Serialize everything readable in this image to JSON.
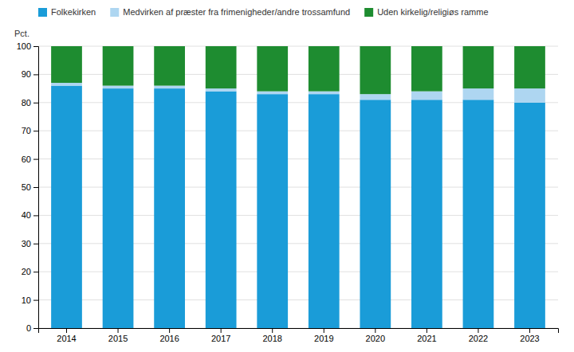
{
  "chart_data": {
    "type": "bar",
    "stacked": true,
    "ylabel": "Pct.",
    "categories": [
      "2014",
      "2015",
      "2016",
      "2017",
      "2018",
      "2019",
      "2020",
      "2021",
      "2022",
      "2023"
    ],
    "series": [
      {
        "name": "Folkekirken",
        "color": "#1a9cd8",
        "values": [
          86,
          85,
          85,
          84,
          83,
          83,
          81,
          81,
          81,
          80
        ]
      },
      {
        "name": "Medvirken af præster fra frimenigheder/andre trossamfund",
        "color": "#aed6f1",
        "values": [
          1,
          1,
          1,
          1,
          1,
          1,
          2,
          3,
          4,
          5
        ]
      },
      {
        "name": "Uden kirkelig/religiøs ramme",
        "color": "#1e8c30",
        "values": [
          13,
          14,
          14,
          15,
          16,
          16,
          17,
          16,
          15,
          15
        ]
      }
    ],
    "ylim": [
      0,
      100
    ],
    "yticks": [
      0,
      10,
      20,
      30,
      40,
      50,
      60,
      70,
      80,
      90,
      100
    ],
    "grid": true,
    "legend": "top"
  }
}
